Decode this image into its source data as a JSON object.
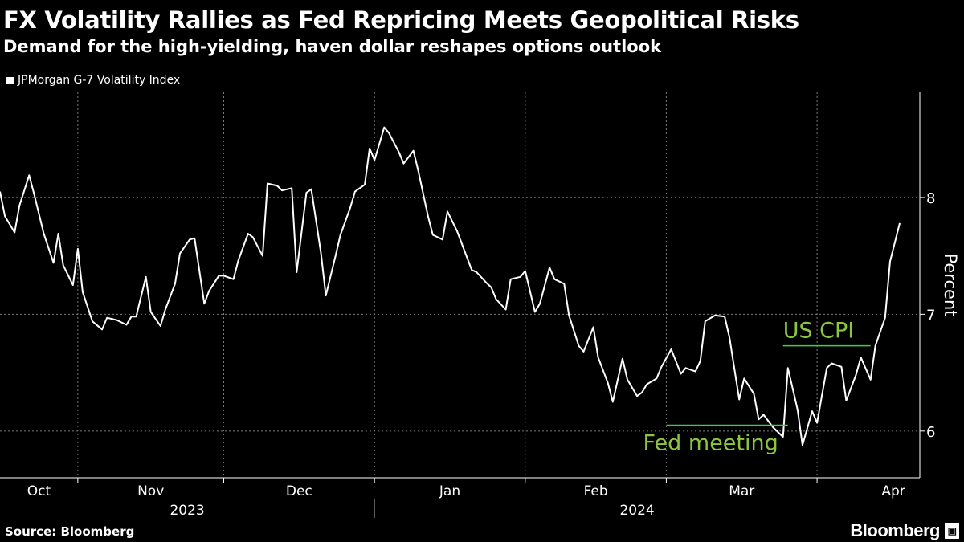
{
  "header": {
    "title": "FX Volatility Rallies as Fed Repricing Meets Geopolitical Risks",
    "subtitle": "Demand for the high-yielding, haven dollar reshapes options outlook"
  },
  "footer": {
    "source": "Source: Bloomberg",
    "logo": "Bloomberg"
  },
  "colors": {
    "background": "#000000",
    "series": "#ffffff",
    "annotation_text": "#8cc63f",
    "annotation_line": "#3fcf3f",
    "grid": "#7a7a7a"
  },
  "chart_data": {
    "type": "line",
    "title": "FX Volatility Rallies as Fed Repricing Meets Geopolitical Risks",
    "subtitle": "Demand for the high-yielding, haven dollar reshapes options outlook",
    "ylabel": "Percent",
    "ylim": [
      5.6,
      8.9
    ],
    "yticks": [
      6,
      7,
      8
    ],
    "xlim": [
      "2023-10-16",
      "2024-04-18"
    ],
    "grid": true,
    "legend_position": "top-left",
    "month_ticks": [
      {
        "label": "Oct",
        "start": "2023-10-01"
      },
      {
        "label": "Nov",
        "start": "2023-11-01"
      },
      {
        "label": "Dec",
        "start": "2023-12-01"
      },
      {
        "label": "Jan",
        "start": "2024-01-01"
      },
      {
        "label": "Feb",
        "start": "2024-02-01"
      },
      {
        "label": "Mar",
        "start": "2024-03-01"
      },
      {
        "label": "Apr",
        "start": "2024-04-01"
      }
    ],
    "year_labels": [
      {
        "label": "2023",
        "start": "2023-10-16",
        "end": "2024-01-01"
      },
      {
        "label": "2024",
        "start": "2024-01-01",
        "end": "2024-04-18"
      }
    ],
    "annotations": [
      {
        "label": "US CPI",
        "start": "2024-03-25",
        "end": "2024-04-12",
        "y": 6.73,
        "text_position": "above"
      },
      {
        "label": "Fed meeting",
        "start": "2024-03-01",
        "end": "2024-03-26",
        "y": 6.05,
        "text_position": "below"
      }
    ],
    "series": [
      {
        "name": "JPMorgan G-7 Volatility Index",
        "x": [
          "2023-10-16",
          "2023-10-17",
          "2023-10-19",
          "2023-10-20",
          "2023-10-22",
          "2023-10-23",
          "2023-10-25",
          "2023-10-27",
          "2023-10-28",
          "2023-10-29",
          "2023-10-31",
          "2023-11-01",
          "2023-11-02",
          "2023-11-04",
          "2023-11-06",
          "2023-11-07",
          "2023-11-09",
          "2023-11-11",
          "2023-11-12",
          "2023-11-13",
          "2023-11-15",
          "2023-11-16",
          "2023-11-18",
          "2023-11-19",
          "2023-11-21",
          "2023-11-22",
          "2023-11-24",
          "2023-11-25",
          "2023-11-27",
          "2023-11-28",
          "2023-11-30",
          "2023-12-01",
          "2023-12-03",
          "2023-12-04",
          "2023-12-06",
          "2023-12-07",
          "2023-12-09",
          "2023-12-10",
          "2023-12-12",
          "2023-12-13",
          "2023-12-15",
          "2023-12-16",
          "2023-12-18",
          "2023-12-19",
          "2023-12-21",
          "2023-12-22",
          "2023-12-24",
          "2023-12-25",
          "2023-12-27",
          "2023-12-28",
          "2023-12-30",
          "2023-12-31",
          "2024-01-01",
          "2024-01-03",
          "2024-01-04",
          "2024-01-06",
          "2024-01-07",
          "2024-01-09",
          "2024-01-10",
          "2024-01-12",
          "2024-01-13",
          "2024-01-15",
          "2024-01-16",
          "2024-01-18",
          "2024-01-19",
          "2024-01-21",
          "2024-01-22",
          "2024-01-24",
          "2024-01-25",
          "2024-01-26",
          "2024-01-28",
          "2024-01-29",
          "2024-01-31",
          "2024-02-01",
          "2024-02-03",
          "2024-02-04",
          "2024-02-06",
          "2024-02-07",
          "2024-02-09",
          "2024-02-10",
          "2024-02-12",
          "2024-02-13",
          "2024-02-15",
          "2024-02-16",
          "2024-02-18",
          "2024-02-19",
          "2024-02-21",
          "2024-02-22",
          "2024-02-24",
          "2024-02-25",
          "2024-02-26",
          "2024-02-28",
          "2024-02-29",
          "2024-03-02",
          "2024-03-04",
          "2024-03-05",
          "2024-03-07",
          "2024-03-08",
          "2024-03-09",
          "2024-03-11",
          "2024-03-13",
          "2024-03-14",
          "2024-03-16",
          "2024-03-17",
          "2024-03-19",
          "2024-03-20",
          "2024-03-21",
          "2024-03-23",
          "2024-03-25",
          "2024-03-26",
          "2024-03-28",
          "2024-03-29",
          "2024-03-31",
          "2024-04-01",
          "2024-04-03",
          "2024-04-04",
          "2024-04-06",
          "2024-04-07",
          "2024-04-09",
          "2024-04-10",
          "2024-04-12",
          "2024-04-13",
          "2024-04-15",
          "2024-04-16",
          "2024-04-18"
        ],
        "values": [
          8.05,
          7.84,
          7.7,
          7.93,
          8.19,
          8.03,
          7.69,
          7.44,
          7.69,
          7.42,
          7.25,
          7.56,
          7.19,
          6.94,
          6.87,
          6.97,
          6.95,
          6.91,
          6.98,
          6.98,
          7.32,
          7.02,
          6.9,
          7.04,
          7.26,
          7.52,
          7.64,
          7.65,
          7.09,
          7.2,
          7.33,
          7.33,
          7.3,
          7.46,
          7.69,
          7.66,
          7.5,
          8.12,
          8.1,
          8.06,
          8.08,
          7.36,
          8.04,
          8.07,
          7.52,
          7.16,
          7.5,
          7.68,
          7.91,
          8.05,
          8.11,
          8.42,
          8.32,
          8.6,
          8.55,
          8.39,
          8.29,
          8.4,
          8.23,
          7.84,
          7.68,
          7.64,
          7.88,
          7.71,
          7.6,
          7.38,
          7.36,
          7.27,
          7.23,
          7.13,
          7.04,
          7.3,
          7.32,
          7.37,
          7.02,
          7.09,
          7.4,
          7.3,
          7.26,
          6.99,
          6.73,
          6.68,
          6.89,
          6.63,
          6.41,
          6.25,
          6.62,
          6.44,
          6.3,
          6.33,
          6.4,
          6.45,
          6.55,
          6.7,
          6.49,
          6.54,
          6.51,
          6.6,
          6.94,
          6.99,
          6.98,
          6.8,
          6.27,
          6.45,
          6.32,
          6.1,
          6.14,
          6.03,
          5.95,
          6.54,
          6.18,
          5.88,
          6.17,
          6.07,
          6.54,
          6.58,
          6.55,
          6.26,
          6.48,
          6.63,
          6.44,
          6.73,
          6.97,
          7.45,
          7.78
        ]
      }
    ]
  }
}
